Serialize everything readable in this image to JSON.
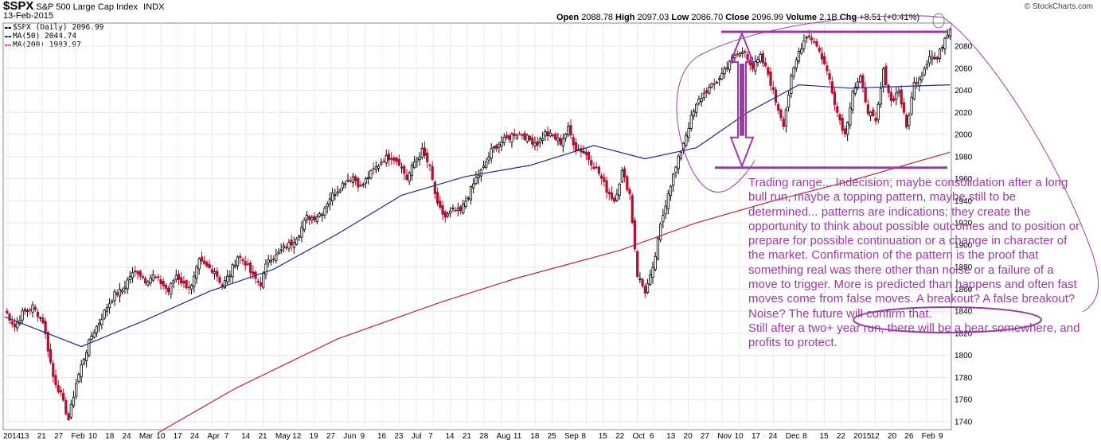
{
  "header": {
    "symbol": "$SPX",
    "name": "S&P 500 Large Cap Index",
    "exchange": "INDX",
    "date": "13-Feb-2015",
    "ohlc_open_label": "Open",
    "open": "2088.78",
    "ohlc_high_label": "High",
    "high": "2097.03",
    "ohlc_low_label": "Low",
    "low": "2086.70",
    "ohlc_close_label": "Close",
    "close": "2096.99",
    "ohlc_volume_label": "Volume",
    "volume": "2.1B",
    "ohlc_chg_label": "Chg",
    "chg": "+8.51 (+0.41%)",
    "credit": "© StockCharts.com"
  },
  "legend": {
    "price": "$SPX (Daily) 2096.99",
    "ma50": "MA(50) 2044.74",
    "ma200": "MA(200) 1983.97"
  },
  "annotation": {
    "text": "Trading range... Indecision; maybe consolidation after a long bull run, maybe a topping pattern, maybe still to be determined...  patterns are indications; they create the opportunity to think about possible outcomes and to position or prepare for possible continuation or a change in character of the market. Confirmation of the pattern is the proof that something real was there other than noise or a failure of a move to trigger. More is predicted than happens and often fast moves come from false moves. A breakout? A false breakout? Noise? The future will confirm that.",
    "text2": "Still after a two+ year run, there will be a bear somewhere, and profits to protect.",
    "color": "#9b3aa6"
  },
  "chart_data": {
    "type": "candlestick",
    "ylim": [
      1730,
      2110
    ],
    "yticks": [
      1740,
      1760,
      1780,
      1800,
      1820,
      1840,
      1860,
      1880,
      1900,
      1920,
      1940,
      1960,
      1980,
      2000,
      2020,
      2040,
      2060,
      2080
    ],
    "xtick_labels": [
      "2014",
      "13",
      "21",
      "27",
      "Feb",
      "10",
      "18",
      "24",
      "Mar",
      "10",
      "17",
      "24",
      "Apr",
      "7",
      "14",
      "21",
      "May",
      "12",
      "19",
      "27",
      "Jun",
      "9",
      "16",
      "23",
      "Jul",
      "7",
      "14",
      "21",
      "28",
      "Aug",
      "11",
      "18",
      "25",
      "Sep",
      "8",
      "15",
      "22",
      "Oct",
      "6",
      "13",
      "20",
      "27",
      "Nov",
      "10",
      "17",
      "24",
      "Dec",
      "8",
      "15",
      "22",
      "2015",
      "12",
      "20",
      "26",
      "Feb",
      "9"
    ],
    "close_path": [
      [
        0,
        1842
      ],
      [
        4,
        1826
      ],
      [
        7,
        1838
      ],
      [
        11,
        1844
      ],
      [
        15,
        1831
      ],
      [
        19,
        1781
      ],
      [
        22,
        1764
      ],
      [
        25,
        1742
      ],
      [
        28,
        1775
      ],
      [
        31,
        1798
      ],
      [
        34,
        1818
      ],
      [
        37,
        1830
      ],
      [
        40,
        1844
      ],
      [
        43,
        1855
      ],
      [
        46,
        1859
      ],
      [
        49,
        1872
      ],
      [
        52,
        1876
      ],
      [
        55,
        1868
      ],
      [
        58,
        1872
      ],
      [
        61,
        1866
      ],
      [
        64,
        1858
      ],
      [
        67,
        1873
      ],
      [
        70,
        1864
      ],
      [
        73,
        1862
      ],
      [
        76,
        1885
      ],
      [
        79,
        1880
      ],
      [
        82,
        1877
      ],
      [
        85,
        1863
      ],
      [
        88,
        1874
      ],
      [
        91,
        1890
      ],
      [
        94,
        1884
      ],
      [
        97,
        1871
      ],
      [
        100,
        1865
      ],
      [
        103,
        1888
      ],
      [
        106,
        1890
      ],
      [
        109,
        1897
      ],
      [
        112,
        1902
      ],
      [
        115,
        1911
      ],
      [
        118,
        1925
      ],
      [
        121,
        1925
      ],
      [
        124,
        1930
      ],
      [
        127,
        1943
      ],
      [
        130,
        1950
      ],
      [
        133,
        1958
      ],
      [
        136,
        1962
      ],
      [
        139,
        1952
      ],
      [
        142,
        1962
      ],
      [
        145,
        1970
      ],
      [
        148,
        1978
      ],
      [
        151,
        1980
      ],
      [
        154,
        1975
      ],
      [
        157,
        1960
      ],
      [
        160,
        1975
      ],
      [
        163,
        1985
      ],
      [
        166,
        1970
      ],
      [
        169,
        1935
      ],
      [
        172,
        1925
      ],
      [
        175,
        1931
      ],
      [
        178,
        1930
      ],
      [
        181,
        1945
      ],
      [
        184,
        1960
      ],
      [
        187,
        1970
      ],
      [
        190,
        1985
      ],
      [
        193,
        1992
      ],
      [
        196,
        1996
      ],
      [
        199,
        2001
      ],
      [
        202,
        2000
      ],
      [
        205,
        1995
      ],
      [
        208,
        1992
      ],
      [
        211,
        2001
      ],
      [
        214,
        1998
      ],
      [
        217,
        1993
      ],
      [
        220,
        2005
      ],
      [
        223,
        1987
      ],
      [
        226,
        1985
      ],
      [
        229,
        1975
      ],
      [
        232,
        1965
      ],
      [
        235,
        1950
      ],
      [
        238,
        1940
      ],
      [
        241,
        1966
      ],
      [
        244,
        1946
      ],
      [
        247,
        1873
      ],
      [
        250,
        1858
      ],
      [
        253,
        1877
      ],
      [
        256,
        1917
      ],
      [
        259,
        1948
      ],
      [
        262,
        1970
      ],
      [
        265,
        1993
      ],
      [
        268,
        2015
      ],
      [
        271,
        2031
      ],
      [
        274,
        2040
      ],
      [
        277,
        2045
      ],
      [
        280,
        2055
      ],
      [
        283,
        2067
      ],
      [
        286,
        2072
      ],
      [
        289,
        2075
      ],
      [
        292,
        2060
      ],
      [
        295,
        2070
      ],
      [
        298,
        2055
      ],
      [
        301,
        2030
      ],
      [
        304,
        2010
      ],
      [
        307,
        2050
      ],
      [
        310,
        2075
      ],
      [
        313,
        2090
      ],
      [
        316,
        2085
      ],
      [
        319,
        2070
      ],
      [
        322,
        2050
      ],
      [
        325,
        2020
      ],
      [
        328,
        2000
      ],
      [
        331,
        2040
      ],
      [
        334,
        2050
      ],
      [
        337,
        2022
      ],
      [
        340,
        2010
      ],
      [
        343,
        2057
      ],
      [
        346,
        2030
      ],
      [
        349,
        2040
      ],
      [
        352,
        2006
      ],
      [
        355,
        2046
      ],
      [
        358,
        2055
      ],
      [
        361,
        2072
      ],
      [
        364,
        2068
      ],
      [
        367,
        2088
      ],
      [
        369,
        2097
      ]
    ],
    "ma50_path": [
      [
        0,
        1835
      ],
      [
        30,
        1808
      ],
      [
        55,
        1832
      ],
      [
        80,
        1858
      ],
      [
        105,
        1878
      ],
      [
        130,
        1910
      ],
      [
        155,
        1945
      ],
      [
        180,
        1962
      ],
      [
        205,
        1972
      ],
      [
        230,
        1990
      ],
      [
        250,
        1978
      ],
      [
        270,
        1988
      ],
      [
        290,
        2020
      ],
      [
        310,
        2045
      ],
      [
        330,
        2042
      ],
      [
        369,
        2045
      ]
    ],
    "ma200_path": [
      [
        60,
        1730
      ],
      [
        90,
        1770
      ],
      [
        130,
        1815
      ],
      [
        170,
        1848
      ],
      [
        200,
        1870
      ],
      [
        240,
        1895
      ],
      [
        270,
        1920
      ],
      [
        300,
        1940
      ],
      [
        330,
        1958
      ],
      [
        369,
        1984
      ]
    ],
    "range_lines": [
      2093,
      1970
    ]
  }
}
